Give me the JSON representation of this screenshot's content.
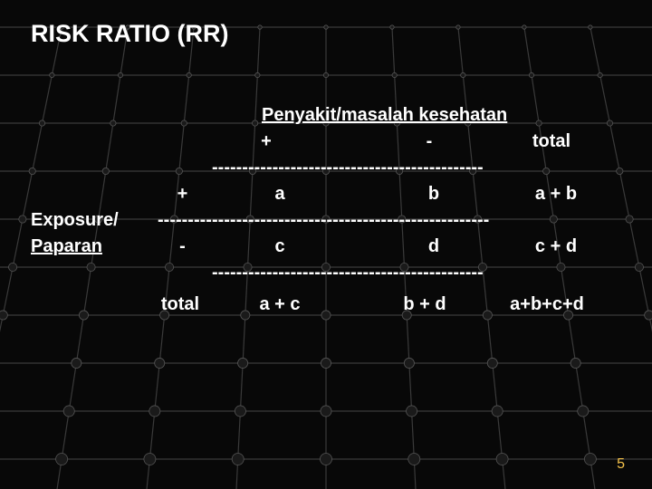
{
  "title": "RISK RATIO (RR)",
  "col_group_header": "Penyakit/masalah kesehatan",
  "cols": {
    "plus": "+",
    "minus": "-",
    "total": "total"
  },
  "row_group_label_line1": "Exposure/",
  "row_group_label_line2": "Paparan",
  "rows": {
    "plus_sign": "+",
    "minus_sign": "-",
    "total_label": "total"
  },
  "cells": {
    "a": "a",
    "b": "b",
    "apb": "a + b",
    "c": "c",
    "d": "d",
    "cpd": "c + d",
    "apc": "a + c",
    "bpd": "b + d",
    "abcd": "a+b+c+d"
  },
  "dash_short": "---------------------------------------------",
  "dash_long": "-------------------------------------------------------",
  "page_number": "5",
  "grid": {
    "stroke": "#3a3a3a",
    "node_fill": "#1a1a1a",
    "node_stroke": "#555555"
  }
}
